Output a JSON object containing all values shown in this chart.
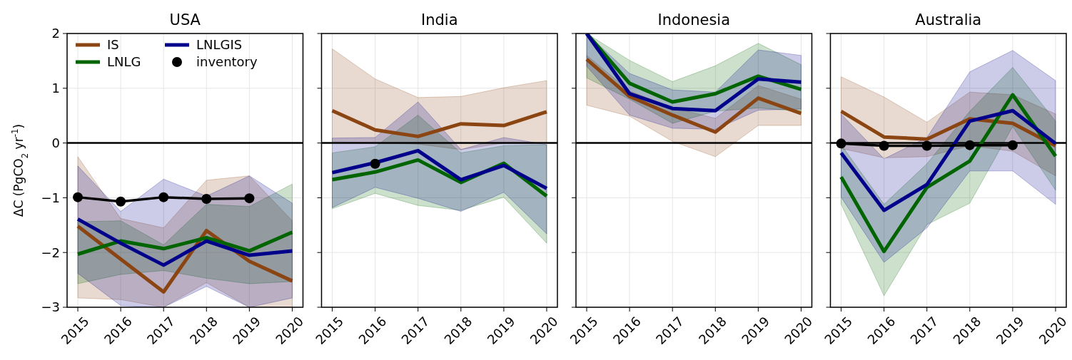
{
  "chart_data": [
    {
      "type": "line",
      "title": "USA",
      "ylabel": "ΔC (PgCO$_{2}$ yr$^{-1}$)",
      "x": [
        2015,
        2016,
        2017,
        2018,
        2019,
        2020
      ],
      "xlim": [
        2014.75,
        2020.25
      ],
      "xticks": [
        2015,
        2016,
        2017,
        2018,
        2019,
        2020
      ],
      "ylim": [
        -3,
        2
      ],
      "yticks": [
        -3,
        -2,
        -1,
        0,
        1,
        2
      ],
      "grid": true,
      "legend": "top left",
      "ref_lines": [
        {
          "axis": "y",
          "value": 0,
          "color": "#000000"
        }
      ],
      "series": [
        {
          "name": "IS",
          "color": "#8b4513",
          "marker": "none",
          "values": [
            -1.52,
            -2.12,
            -2.72,
            -1.6,
            -2.16,
            -2.52
          ],
          "lower": [
            -2.83,
            -2.86,
            -3,
            -2.55,
            -3,
            -3
          ],
          "upper": [
            -0.25,
            -1.38,
            -1.55,
            -0.68,
            -0.6,
            -1.42
          ]
        },
        {
          "name": "LNLG",
          "color": "#006400",
          "marker": "none",
          "values": [
            -2.03,
            -1.79,
            -1.93,
            -1.73,
            -1.97,
            -1.63
          ],
          "lower": [
            -2.57,
            -2.4,
            -2.33,
            -2.47,
            -2.57,
            -2.53
          ],
          "upper": [
            -1.44,
            -1.42,
            -1.86,
            -1.12,
            -1.16,
            -0.75
          ]
        },
        {
          "name": "LNLGIS",
          "color": "#00008b",
          "marker": "none",
          "values": [
            -1.39,
            -1.83,
            -2.23,
            -1.79,
            -2.05,
            -1.97
          ],
          "lower": [
            -2.38,
            -2.97,
            -3,
            -2.62,
            -3,
            -2.83
          ],
          "upper": [
            -0.42,
            -1.25,
            -0.66,
            -0.97,
            -0.6,
            -1.1
          ]
        },
        {
          "name": "inventory",
          "color": "#000000",
          "marker": "circle",
          "values": [
            -0.99,
            -1.07,
            -0.99,
            -1.02,
            -1.01,
            null
          ]
        }
      ]
    },
    {
      "type": "line",
      "title": "India",
      "tick_labels": "x",
      "x": [
        2015,
        2016,
        2017,
        2018,
        2019,
        2020
      ],
      "xlim": [
        2014.75,
        2020.25
      ],
      "xticks": [
        2015,
        2016,
        2017,
        2018,
        2019,
        2020
      ],
      "ylim": [
        -3,
        2
      ],
      "yticks": [
        -3,
        -2,
        -1,
        0,
        1,
        2
      ],
      "grid": true,
      "ref_lines": [
        {
          "axis": "y",
          "value": 0,
          "color": "#000000"
        }
      ],
      "series": [
        {
          "color": "#8b4513",
          "marker": "none",
          "values": [
            0.59,
            0.24,
            0.12,
            0.35,
            0.32,
            0.57
          ],
          "lower": [
            0.02,
            0,
            -0.02,
            -0.12,
            0,
            0
          ],
          "upper": [
            1.72,
            1.17,
            0.83,
            0.85,
            1.01,
            1.14
          ]
        },
        {
          "color": "#006400",
          "marker": "none",
          "values": [
            -0.67,
            -0.53,
            -0.31,
            -0.72,
            -0.37,
            -0.97
          ],
          "lower": [
            -1.2,
            -0.92,
            -1.14,
            -1.23,
            -0.99,
            -1.83
          ],
          "upper": [
            -0.18,
            -0.07,
            0.51,
            -0.18,
            -0.05,
            -0.03
          ]
        },
        {
          "color": "#00008b",
          "marker": "none",
          "values": [
            -0.54,
            -0.36,
            -0.14,
            -0.67,
            -0.41,
            -0.83
          ],
          "lower": [
            -1.18,
            -0.81,
            -1.01,
            -1.25,
            -0.9,
            -1.66
          ],
          "upper": [
            0.09,
            0.1,
            0.75,
            -0.12,
            0.1,
            -0.03
          ]
        },
        {
          "color": "#000000",
          "marker": "circle",
          "values": [
            null,
            -0.38,
            null,
            null,
            null,
            null
          ]
        }
      ]
    },
    {
      "type": "line",
      "title": "Indonesia",
      "tick_labels": "x",
      "x": [
        2015,
        2016,
        2017,
        2018,
        2019,
        2020
      ],
      "xlim": [
        2014.75,
        2020.25
      ],
      "xticks": [
        2015,
        2016,
        2017,
        2018,
        2019,
        2020
      ],
      "ylim": [
        -3,
        2
      ],
      "yticks": [
        -3,
        -2,
        -1,
        0,
        1,
        2
      ],
      "grid": true,
      "ref_lines": [
        {
          "axis": "y",
          "value": 0,
          "color": "#000000"
        }
      ],
      "series": [
        {
          "color": "#8b4513",
          "marker": "none",
          "values": [
            1.53,
            0.85,
            0.51,
            0.2,
            0.82,
            0.54
          ],
          "lower": [
            0.69,
            0.49,
            0.03,
            -0.25,
            0.32,
            0.32
          ],
          "upper": [
            1.6,
            0.95,
            0.65,
            0.45,
            1.05,
            0.8
          ]
        },
        {
          "color": "#006400",
          "marker": "none",
          "values": [
            2,
            1.09,
            0.75,
            0.9,
            1.22,
            0.98
          ],
          "lower": [
            1.19,
            0.8,
            0.36,
            0.58,
            0.64,
            0.58
          ],
          "upper": [
            2,
            1.51,
            1.12,
            1.41,
            1.82,
            1.43
          ]
        },
        {
          "color": "#00008b",
          "marker": "none",
          "values": [
            2,
            0.9,
            0.63,
            0.59,
            1.17,
            1.11
          ],
          "lower": [
            1.4,
            0.51,
            0.27,
            0.25,
            0.6,
            0.62
          ],
          "upper": [
            2,
            1.27,
            0.97,
            0.93,
            1.7,
            1.6
          ]
        }
      ]
    },
    {
      "type": "line",
      "title": "Australia",
      "tick_labels": "x",
      "x": [
        2015,
        2016,
        2017,
        2018,
        2019,
        2020
      ],
      "xlim": [
        2014.75,
        2020.25
      ],
      "xticks": [
        2015,
        2016,
        2017,
        2018,
        2019,
        2020
      ],
      "ylim": [
        -3,
        2
      ],
      "yticks": [
        -3,
        -2,
        -1,
        0,
        1,
        2
      ],
      "grid": true,
      "ref_lines": [
        {
          "axis": "y",
          "value": 0,
          "color": "#000000"
        }
      ],
      "series": [
        {
          "color": "#8b4513",
          "marker": "none",
          "values": [
            0.58,
            0.11,
            0.07,
            0.44,
            0.36,
            -0.05
          ],
          "lower": [
            -0.1,
            -0.27,
            -0.25,
            -0.05,
            -0.15,
            -0.6
          ],
          "upper": [
            1.21,
            0.84,
            0.38,
            0.93,
            0.88,
            0.53
          ]
        },
        {
          "color": "#006400",
          "marker": "none",
          "values": [
            -0.62,
            -1.98,
            -0.81,
            -0.33,
            0.88,
            -0.24
          ],
          "lower": [
            -1.12,
            -2.79,
            -1.49,
            -1.1,
            0.3,
            -0.86
          ],
          "upper": [
            -0.03,
            -1.12,
            -0.38,
            0.58,
            1.38,
            0.4
          ]
        },
        {
          "color": "#00008b",
          "marker": "none",
          "values": [
            -0.18,
            -1.23,
            -0.76,
            0.4,
            0.59,
            -0.01
          ],
          "lower": [
            -0.99,
            -2.18,
            -1.55,
            -0.51,
            -0.51,
            -1.12
          ],
          "upper": [
            0.53,
            -0.29,
            0.1,
            1.3,
            1.69,
            1.14
          ]
        },
        {
          "color": "#000000",
          "marker": "circle",
          "values": [
            -0.01,
            -0.05,
            -0.05,
            -0.04,
            -0.04,
            null
          ]
        }
      ]
    }
  ]
}
